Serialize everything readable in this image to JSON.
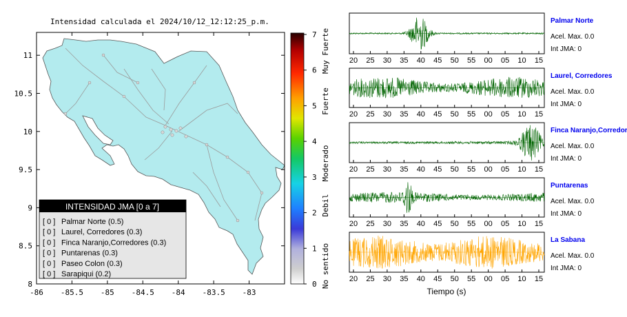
{
  "map": {
    "title": "Intensidad calculada el 2024/10/12_12:12:25_p.m.",
    "xticks": [
      "-86",
      "-85.5",
      "-85",
      "-84.5",
      "-84",
      "-83.5",
      "-83"
    ],
    "yticks": [
      "11",
      "10.5",
      "10",
      "9.5",
      "9",
      "8.5",
      "8"
    ],
    "xlim": [
      -86,
      -82.5
    ],
    "ylim": [
      8,
      11.3
    ],
    "land_color": "#b3ebee",
    "ocean_color": "#ffffff"
  },
  "legend": {
    "header": "INTENSIDAD JMA [0 a 7]",
    "items": [
      {
        "bracket": "[ 0 ]",
        "label": "Palmar Norte (0.5)"
      },
      {
        "bracket": "[ 0 ]",
        "label": "Laurel, Corredores (0.3)"
      },
      {
        "bracket": "[ 0 ]",
        "label": "Finca Naranjo,Corredores (0.3)"
      },
      {
        "bracket": "[ 0 ]",
        "label": "Puntarenas (0.3)"
      },
      {
        "bracket": "[ 0 ]",
        "label": "Paseo Colon (0.3)"
      },
      {
        "bracket": "[ 0 ]",
        "label": "Sarapiqui (0.2)"
      }
    ]
  },
  "colorbar": {
    "ticks": [
      "0",
      "1",
      "2",
      "3",
      "4",
      "5",
      "6",
      "7"
    ],
    "range": [
      0,
      7
    ],
    "labels": [
      "No sentido",
      "Debil",
      "Moderado",
      "Fuerte",
      "Muy Fuerte"
    ]
  },
  "chart_data": [
    {
      "type": "map",
      "title": "Intensidad calculada el 2024/10/12_12:12:25_p.m.",
      "xlim": [
        -86,
        -82.5
      ],
      "ylim": [
        8,
        11.3
      ],
      "colorbar_range": [
        0,
        7
      ]
    },
    {
      "type": "line",
      "name": "Palmar Norte",
      "x_ticks": [
        "20",
        "25",
        "30",
        "35",
        "40",
        "45",
        "50",
        "55",
        "00",
        "05",
        "10",
        "15"
      ],
      "burst_center_x": 40,
      "burst_width": 6,
      "amplitude": "small noise with burst near 40",
      "color": "#006400"
    },
    {
      "type": "line",
      "name": "Laurel, Corredores",
      "x_ticks": [
        "20",
        "25",
        "30",
        "35",
        "40",
        "45",
        "50",
        "55",
        "00",
        "05",
        "10",
        "15"
      ],
      "amplitude": "continuous noise",
      "color": "#006400"
    },
    {
      "type": "line",
      "name": "Finca Naranjo,Corredores",
      "x_ticks": [
        "20",
        "25",
        "30",
        "35",
        "40",
        "45",
        "50",
        "55",
        "00",
        "05",
        "10",
        "15"
      ],
      "burst_center_x": 75,
      "amplitude": "small noise with burst near 15",
      "color": "#006400"
    },
    {
      "type": "line",
      "name": "Puntarenas",
      "x_ticks": [
        "20",
        "25",
        "30",
        "35",
        "40",
        "45",
        "50",
        "55",
        "00",
        "05",
        "10",
        "15"
      ],
      "burst_center_x": 37,
      "amplitude": "noise with spike near 36",
      "color": "#006400"
    },
    {
      "type": "line",
      "name": "La Sabana",
      "x_ticks": [
        "20",
        "25",
        "30",
        "35",
        "40",
        "45",
        "50",
        "55",
        "00",
        "05",
        "10",
        "15"
      ],
      "amplitude": "continuous noise",
      "color": "#ffa500"
    }
  ],
  "stations": [
    {
      "name": "Palmar Norte",
      "acel": "Acel. Max. 0.0",
      "int": "Int JMA: 0",
      "color": "#006400"
    },
    {
      "name": "Laurel, Corredores",
      "acel": "Acel. Max. 0.0",
      "int": "Int JMA: 0",
      "color": "#006400"
    },
    {
      "name": "Finca Naranjo,Corredores",
      "acel": "Acel. Max. 0.0",
      "int": "Int JMA: 0",
      "color": "#006400"
    },
    {
      "name": "Puntarenas",
      "acel": "Acel. Max. 0.0",
      "int": "Int JMA: 0",
      "color": "#006400"
    },
    {
      "name": "La Sabana",
      "acel": "Acel. Max. 0.0",
      "int": "Int JMA: 0",
      "color": "#ffa500"
    }
  ],
  "wave_ticks": [
    "20",
    "25",
    "30",
    "35",
    "40",
    "45",
    "50",
    "55",
    "00",
    "05",
    "10",
    "15"
  ],
  "wave_xlabel": "Tiempo (s)",
  "station_name_color": "#0000ee"
}
